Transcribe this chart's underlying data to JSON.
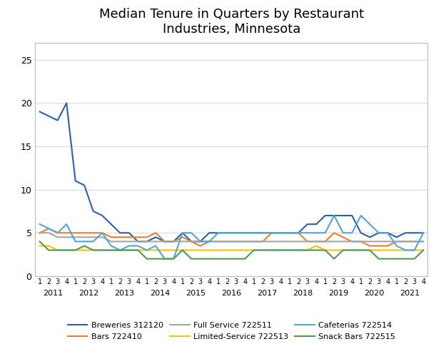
{
  "title": "Median Tenure in Quarters by Restaurant\nIndustries, Minnesota",
  "years": [
    2011,
    2012,
    2013,
    2014,
    2015,
    2016,
    2017,
    2018,
    2019,
    2020,
    2021
  ],
  "quarters_per_year": 4,
  "series_order": [
    "Breweries 312120",
    "Bars 722410",
    "Full Service 722511",
    "Limited-Service 722513",
    "Cafeterias 722514",
    "Snack Bars 722515"
  ],
  "series": {
    "Breweries 312120": {
      "color": "#2E5FAC",
      "values": [
        19,
        18.5,
        18,
        20,
        11,
        10.5,
        7.5,
        7,
        6,
        5,
        5,
        4,
        4,
        4.5,
        4,
        4,
        5,
        4,
        4,
        5,
        5,
        5,
        5,
        5,
        5,
        5,
        5,
        5,
        5,
        5,
        6,
        6,
        7,
        7,
        7,
        7,
        5,
        4.5,
        5,
        5,
        4.5,
        5,
        5,
        5
      ]
    },
    "Bars 722410": {
      "color": "#ED7D31",
      "values": [
        5,
        5.5,
        5,
        5,
        5,
        5,
        5,
        5,
        4.5,
        4.5,
        4.5,
        4.5,
        4.5,
        5,
        4,
        4,
        4.5,
        4,
        3.5,
        4,
        4,
        4,
        4,
        4,
        4,
        4,
        5,
        5,
        5,
        5,
        4,
        4,
        4,
        5,
        4.5,
        4,
        4,
        3.5,
        3.5,
        3.5,
        4,
        4,
        4,
        4
      ]
    },
    "Full Service 722511": {
      "color": "#A5A5A5",
      "values": [
        5,
        5,
        4.5,
        4.5,
        4.5,
        4.5,
        4.5,
        4.5,
        4,
        4,
        4,
        4,
        4,
        4,
        4,
        4,
        4,
        4,
        4,
        4,
        4,
        4,
        4,
        4,
        4,
        4,
        4,
        4,
        4,
        4,
        4,
        4,
        4,
        4,
        4,
        4,
        4,
        4,
        4,
        4,
        4,
        4,
        4,
        4
      ]
    },
    "Limited-Service 722513": {
      "color": "#FFC000",
      "values": [
        3.5,
        3.5,
        3,
        3,
        3,
        3,
        3,
        3,
        3,
        3,
        3,
        3,
        3,
        3,
        3,
        3,
        3,
        3,
        3,
        3,
        3,
        3,
        3,
        3,
        3,
        3,
        3,
        3,
        3,
        3,
        3,
        3.5,
        3,
        3,
        3,
        3,
        3,
        3,
        3,
        3,
        3,
        3,
        3,
        3
      ]
    },
    "Cafeterias 722514": {
      "color": "#4EA6DC",
      "values": [
        6,
        5.5,
        5,
        6,
        4,
        4,
        4,
        5,
        3.5,
        3,
        3.5,
        3.5,
        3,
        3.5,
        2,
        2,
        5,
        5,
        4,
        4,
        5,
        5,
        5,
        5,
        5,
        5,
        5,
        5,
        5,
        5,
        5,
        5,
        5,
        7,
        5,
        5,
        7,
        6,
        5,
        5,
        3.5,
        3,
        3,
        5
      ]
    },
    "Snack Bars 722515": {
      "color": "#4E9A51",
      "values": [
        4,
        3,
        3,
        3,
        3,
        3.5,
        3,
        3,
        3,
        3,
        3,
        3,
        2,
        2,
        2,
        2,
        3,
        2,
        2,
        2,
        2,
        2,
        2,
        2,
        3,
        3,
        3,
        3,
        3,
        3,
        3,
        3,
        3,
        2,
        3,
        3,
        3,
        3,
        2,
        2,
        2,
        2,
        2,
        3
      ]
    }
  },
  "ylim": [
    0,
    27
  ],
  "yticks": [
    0,
    5,
    10,
    15,
    20,
    25
  ],
  "background_color": "#FFFFFF",
  "grid_color": "#D9D9D9",
  "spine_color": "#BBBBBB"
}
